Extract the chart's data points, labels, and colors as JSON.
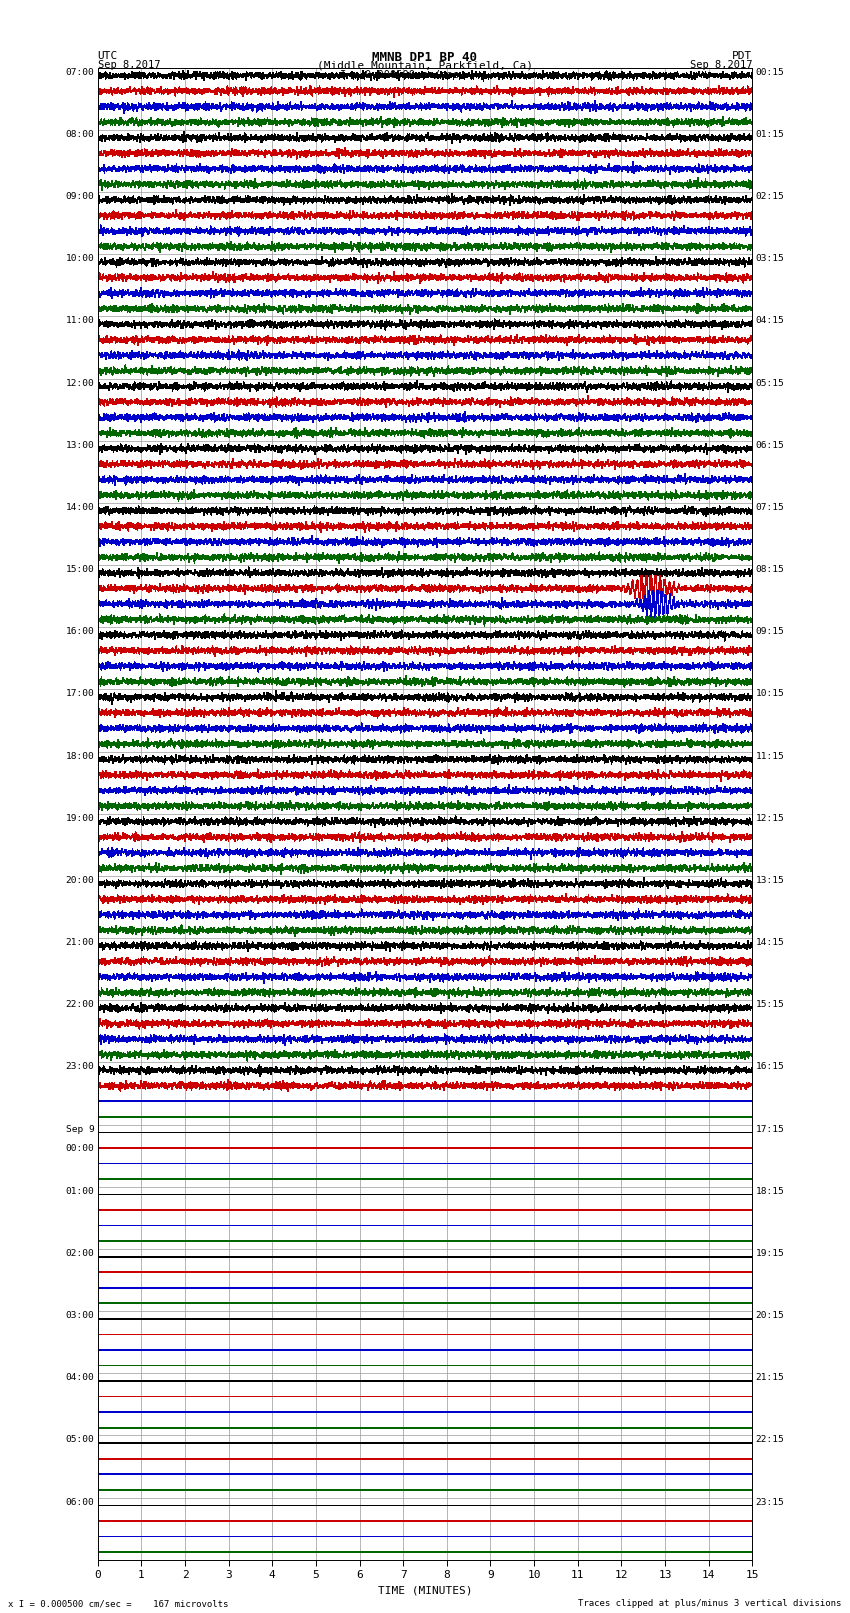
{
  "title_line1": "MMNB DP1 BP 40",
  "title_line2": "(Middle Mountain, Parkfield, Ca)",
  "scale_text": "I = 0.000500 cm/sec",
  "left_header": "UTC",
  "left_date": "Sep 8,2017",
  "right_header": "PDT",
  "right_date": "Sep 8,2017",
  "xlabel": "TIME (MINUTES)",
  "footer_left": "x I = 0.000500 cm/sec =    167 microvolts",
  "footer_right": "Traces clipped at plus/minus 3 vertical divisions",
  "xmin": 0,
  "xmax": 15,
  "colors": [
    "black",
    "#cc0000",
    "#0000cc",
    "#006600"
  ],
  "utc_labels": [
    "07:00",
    "08:00",
    "09:00",
    "10:00",
    "11:00",
    "12:00",
    "13:00",
    "14:00",
    "15:00",
    "16:00",
    "17:00",
    "18:00",
    "19:00",
    "20:00",
    "21:00",
    "22:00",
    "23:00",
    "Sep 9\n00:00",
    "01:00",
    "02:00",
    "03:00",
    "04:00",
    "05:00",
    "06:00"
  ],
  "pdt_labels": [
    "00:15",
    "01:15",
    "02:15",
    "03:15",
    "04:15",
    "05:15",
    "06:15",
    "07:15",
    "08:15",
    "09:15",
    "10:15",
    "11:15",
    "12:15",
    "13:15",
    "14:15",
    "15:15",
    "16:15",
    "17:15",
    "18:15",
    "19:15",
    "20:15",
    "21:15",
    "22:15",
    "23:15"
  ],
  "n_rows": 24,
  "traces_per_row": 4,
  "noise_amplitude": 0.28,
  "active_rows": 16,
  "partial_row_16_traces": 2,
  "earthquake_row": 8,
  "earthquake_trace_red": 1,
  "earthquake_trace_blue": 2,
  "earthquake_minute": 12.65,
  "background_color": "white",
  "grid_color": "#999999",
  "trace_linewidth": 0.5,
  "vertical_divisions": 3,
  "n_points": 5000
}
